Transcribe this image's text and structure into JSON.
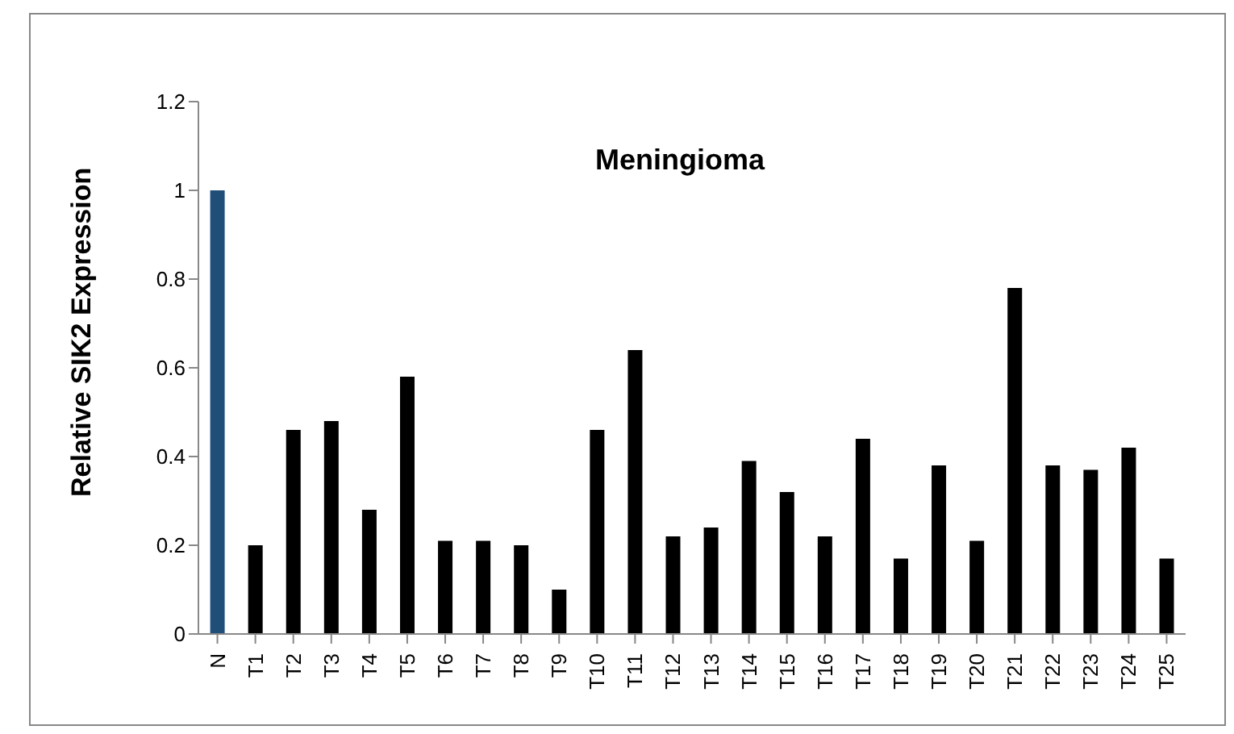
{
  "chart_data": {
    "type": "bar",
    "title": "Meningioma",
    "ylabel": "Relative SIK2 Expression",
    "categories": [
      "N",
      "T1",
      "T2",
      "T3",
      "T4",
      "T5",
      "T6",
      "T7",
      "T8",
      "T9",
      "T10",
      "T11",
      "T12",
      "T13",
      "T14",
      "T15",
      "T16",
      "T17",
      "T18",
      "T19",
      "T20",
      "T21",
      "T22",
      "T23",
      "T24",
      "T25"
    ],
    "values": [
      1,
      0.2,
      0.46,
      0.48,
      0.28,
      0.58,
      0.21,
      0.21,
      0.2,
      0.1,
      0.46,
      0.64,
      0.22,
      0.24,
      0.39,
      0.32,
      0.22,
      0.44,
      0.17,
      0.38,
      0.21,
      0.78,
      0.38,
      0.37,
      0.42,
      0.17
    ],
    "colors": [
      "#1f4e79",
      "#000000",
      "#000000",
      "#000000",
      "#000000",
      "#000000",
      "#000000",
      "#000000",
      "#000000",
      "#000000",
      "#000000",
      "#000000",
      "#000000",
      "#000000",
      "#000000",
      "#000000",
      "#000000",
      "#000000",
      "#000000",
      "#000000",
      "#000000",
      "#000000",
      "#000000",
      "#000000",
      "#000000",
      "#000000"
    ],
    "ylim": [
      0,
      1.2
    ],
    "yticks": [
      0,
      0.2,
      0.4,
      0.6,
      0.8,
      1,
      1.2
    ],
    "grid": false,
    "legend": false
  }
}
